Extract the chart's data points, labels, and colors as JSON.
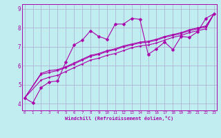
{
  "xlabel": "Windchill (Refroidissement éolien,°C)",
  "bg_color": "#c0eef0",
  "line_color": "#aa00aa",
  "grid_color": "#aaaacc",
  "xlim": [
    -0.3,
    23.3
  ],
  "ylim": [
    3.65,
    9.25
  ],
  "xticks": [
    0,
    1,
    2,
    3,
    4,
    5,
    6,
    7,
    8,
    9,
    10,
    11,
    12,
    13,
    14,
    15,
    16,
    17,
    18,
    19,
    20,
    21,
    22,
    23
  ],
  "yticks": [
    4,
    5,
    6,
    7,
    8,
    9
  ],
  "series_wavy": {
    "x": [
      0,
      1,
      2,
      3,
      4,
      5,
      6,
      7,
      8,
      9,
      10,
      11,
      12,
      13,
      14,
      15,
      16,
      17,
      18,
      19,
      20,
      21,
      22,
      23
    ],
    "y": [
      4.3,
      4.05,
      4.85,
      5.15,
      5.2,
      6.2,
      7.1,
      7.35,
      7.85,
      7.55,
      7.4,
      8.2,
      8.2,
      8.5,
      8.45,
      6.6,
      6.9,
      7.25,
      6.85,
      7.55,
      7.5,
      7.8,
      8.5,
      8.75
    ]
  },
  "series_linear": [
    {
      "x": [
        0,
        2,
        3,
        4,
        5,
        6,
        7,
        8,
        9,
        10,
        11,
        12,
        13,
        14,
        15,
        16,
        17,
        18,
        19,
        20,
        21,
        22,
        23
      ],
      "y": [
        4.3,
        5.6,
        5.75,
        5.8,
        5.95,
        6.15,
        6.35,
        6.55,
        6.65,
        6.8,
        6.9,
        7.05,
        7.15,
        7.25,
        7.3,
        7.4,
        7.55,
        7.65,
        7.75,
        7.9,
        8.0,
        8.1,
        8.75
      ]
    },
    {
      "x": [
        0,
        2,
        3,
        4,
        5,
        6,
        7,
        8,
        9,
        10,
        11,
        12,
        13,
        14,
        15,
        16,
        17,
        18,
        19,
        20,
        21,
        22,
        23
      ],
      "y": [
        4.3,
        5.25,
        5.4,
        5.5,
        5.7,
        5.9,
        6.1,
        6.3,
        6.4,
        6.55,
        6.65,
        6.8,
        6.95,
        7.05,
        7.1,
        7.2,
        7.35,
        7.5,
        7.6,
        7.75,
        7.85,
        7.95,
        8.75
      ]
    },
    {
      "x": [
        0,
        2,
        3,
        4,
        5,
        6,
        7,
        8,
        9,
        10,
        11,
        12,
        13,
        14,
        15,
        16,
        17,
        18,
        19,
        20,
        21,
        22,
        23
      ],
      "y": [
        4.3,
        5.55,
        5.65,
        5.75,
        5.9,
        6.1,
        6.3,
        6.5,
        6.6,
        6.75,
        6.85,
        7.0,
        7.1,
        7.2,
        7.25,
        7.35,
        7.5,
        7.6,
        7.7,
        7.85,
        7.95,
        8.05,
        8.75
      ]
    }
  ]
}
